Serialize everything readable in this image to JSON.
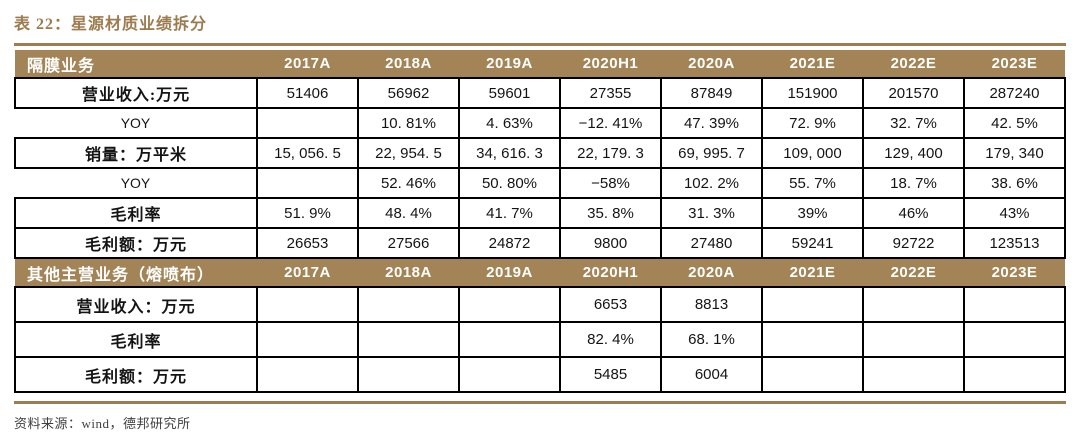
{
  "title": "表 22：星源材质业绩拆分",
  "source_note": "资料来源：wind，德邦研究所",
  "colors": {
    "band_brown": "#a28456",
    "rule_brown": "#a07d50",
    "title_brown": "#9c7b4e",
    "cell_border": "#000000"
  },
  "table": {
    "sections": [
      {
        "header_label": "隔膜业务",
        "years": [
          "2017A",
          "2018A",
          "2019A",
          "2020H1",
          "2020A",
          "2021E",
          "2022E",
          "2023E"
        ],
        "rows": [
          {
            "label": "营业收入:万元",
            "bold": true,
            "values": [
              "51406",
              "56962",
              "59601",
              "27355",
              "87849",
              "151900",
              "201570",
              "287240"
            ]
          },
          {
            "label": "YOY",
            "bold": false,
            "values": [
              "",
              "10. 81%",
              "4. 63%",
              "−12. 41%",
              "47. 39%",
              "72. 9%",
              "32. 7%",
              "42. 5%"
            ]
          },
          {
            "label": "销量：万平米",
            "bold": true,
            "values": [
              "15, 056. 5",
              "22, 954. 5",
              "34, 616. 3",
              "22, 179. 3",
              "69, 995. 7",
              "109, 000",
              "129, 400",
              "179, 340"
            ]
          },
          {
            "label": "YOY",
            "bold": false,
            "values": [
              "",
              "52. 46%",
              "50. 80%",
              "−58%",
              "102. 2%",
              "55. 7%",
              "18. 7%",
              "38. 6%"
            ]
          },
          {
            "label": "毛利率",
            "bold": true,
            "values": [
              "51. 9%",
              "48. 4%",
              "41. 7%",
              "35. 8%",
              "31. 3%",
              "39%",
              "46%",
              "43%"
            ]
          },
          {
            "label": "毛利额：万元",
            "bold": true,
            "values": [
              "26653",
              "27566",
              "24872",
              "9800",
              "27480",
              "59241",
              "92722",
              "123513"
            ]
          }
        ]
      },
      {
        "header_label": "其他主营业务（熔喷布）",
        "years": [
          "2017A",
          "2018A",
          "2019A",
          "2020H1",
          "2020A",
          "2021E",
          "2022E",
          "2023E"
        ],
        "rows": [
          {
            "label": "营业收入：万元",
            "bold": true,
            "values": [
              "",
              "",
              "",
              "6653",
              "8813",
              "",
              "",
              ""
            ]
          },
          {
            "label": "毛利率",
            "bold": true,
            "values": [
              "",
              "",
              "",
              "82. 4%",
              "68. 1%",
              "",
              "",
              ""
            ]
          },
          {
            "label": "毛利额：万元",
            "bold": true,
            "values": [
              "",
              "",
              "",
              "5485",
              "6004",
              "",
              "",
              ""
            ]
          }
        ]
      }
    ]
  }
}
